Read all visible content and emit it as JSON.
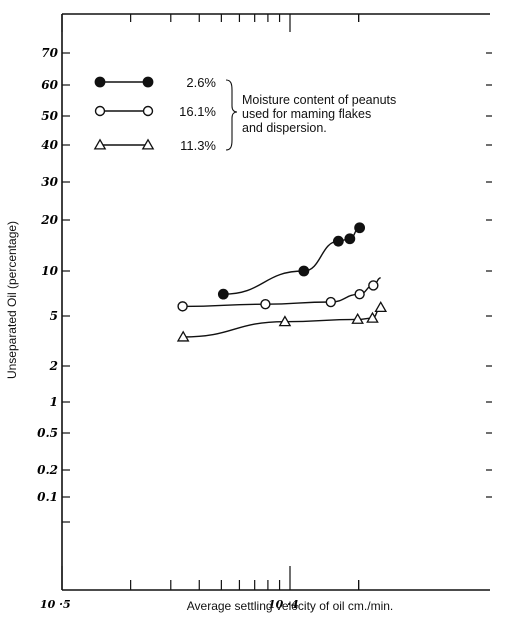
{
  "chart_data": {
    "type": "line",
    "title": "",
    "xlabel": "Average settling velocity of oil cm./min.",
    "ylabel": "Unseparated Oil (percentage)",
    "xscale": "log",
    "xlim": [
      1e-05,
      0.00025
    ],
    "y_tick_labels": [
      "70",
      "60",
      "50",
      "40",
      "30",
      "20",
      "10",
      "5",
      "2",
      "1",
      "0.5",
      "0.2",
      "0.1"
    ],
    "x_tick_labels": [
      "10 ·5",
      "10 ·4"
    ],
    "legend_note": [
      "Moisture content of peanuts",
      "used for maming flakes",
      "and dispersion."
    ],
    "legend_placement": "top-left",
    "grid": false,
    "series": [
      {
        "name": "2.6%",
        "marker": "filled-circle",
        "points": [
          {
            "x": 5.1e-05,
            "y": 7
          },
          {
            "x": 0.000115,
            "y": 10
          },
          {
            "x": 0.000163,
            "y": 15
          },
          {
            "x": 0.000183,
            "y": 15.5
          },
          {
            "x": 0.000202,
            "y": 18
          }
        ]
      },
      {
        "name": "16.1%",
        "marker": "open-circle",
        "points": [
          {
            "x": 3.38e-05,
            "y": 5.8
          },
          {
            "x": 7.8e-05,
            "y": 6
          },
          {
            "x": 0.000151,
            "y": 6.2
          },
          {
            "x": 0.000202,
            "y": 7
          },
          {
            "x": 0.000232,
            "y": 8
          },
          {
            "x": 0.00025,
            "y": 9
          }
        ]
      },
      {
        "name": "11.3%",
        "marker": "open-triangle",
        "points": [
          {
            "x": 3.4e-05,
            "y": 3.4
          },
          {
            "x": 9.5e-05,
            "y": 4.5
          },
          {
            "x": 0.000198,
            "y": 4.7
          },
          {
            "x": 0.00023,
            "y": 4.8
          },
          {
            "x": 0.00025,
            "y": 5.7
          }
        ]
      }
    ]
  }
}
